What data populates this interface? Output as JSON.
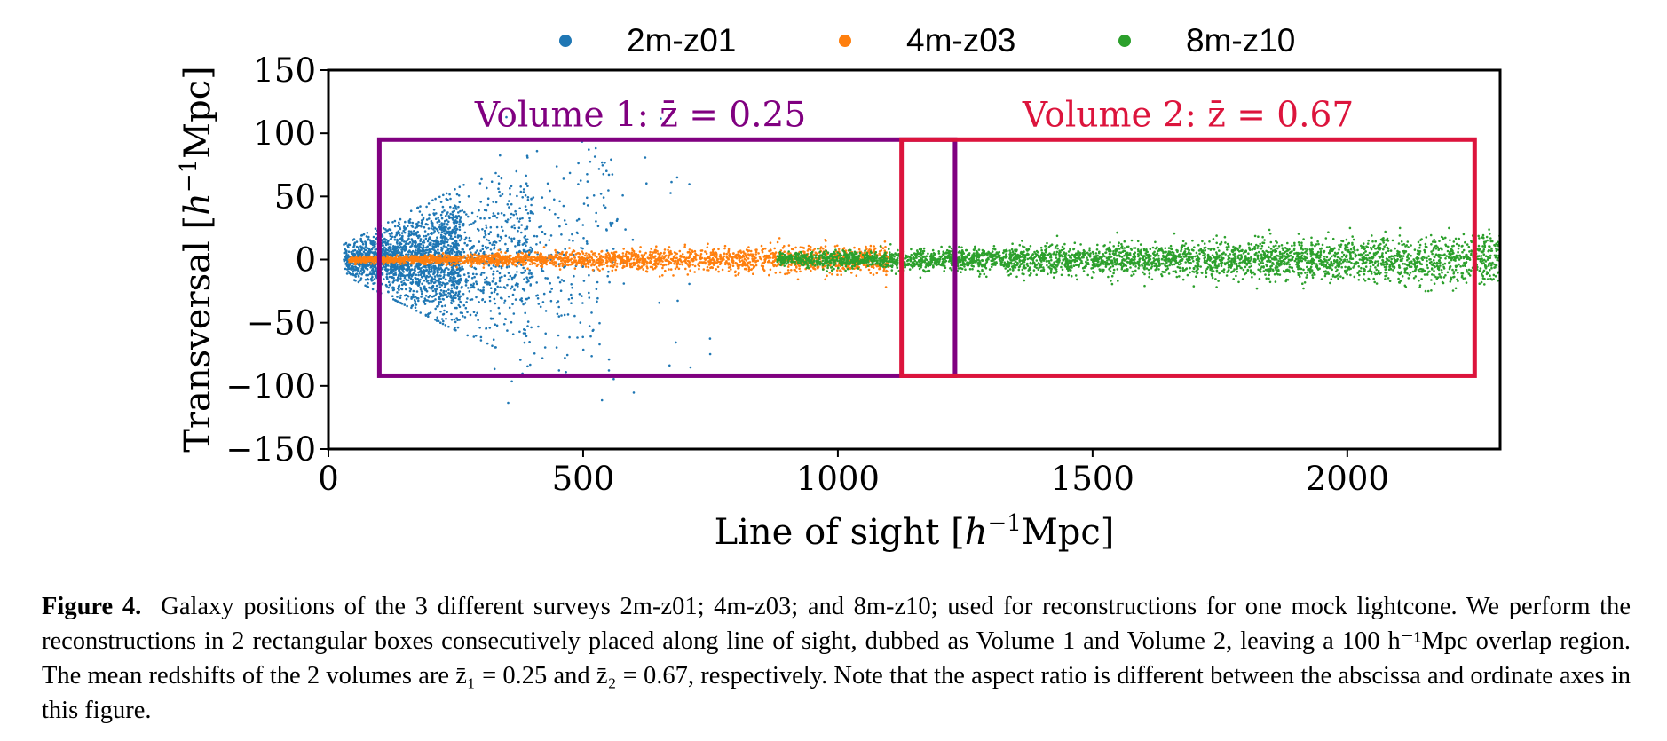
{
  "chart_data": {
    "type": "scatter",
    "xlabel": "Line of sight [h⁻¹Mpc]",
    "ylabel": "Transversal [h⁻¹Mpc]",
    "xlim": [
      0,
      2300
    ],
    "ylim": [
      -150,
      150
    ],
    "x_ticks": [
      0,
      500,
      1000,
      1500,
      2000
    ],
    "y_ticks": [
      150,
      100,
      50,
      0,
      -50,
      -100,
      -150
    ],
    "x_tick_labels": [
      "0",
      "500",
      "1000",
      "1500",
      "2000"
    ],
    "y_tick_labels": [
      "150",
      "100",
      "50",
      "0",
      "−50",
      "−100",
      "−150"
    ],
    "grid": false,
    "legend_position": "top-center, outside",
    "series": [
      {
        "name": "2m-z01",
        "color": "#1f77b4",
        "los_range": [
          30,
          560
        ],
        "opening_half_width_at_250": 55,
        "density": "high near x≈100-300, fanning cone"
      },
      {
        "name": "4m-z03",
        "color": "#ff7f0e",
        "los_range": [
          40,
          1100
        ],
        "transversal_half_width": [
          1,
          12
        ],
        "density": "narrow band"
      },
      {
        "name": "8m-z10",
        "color": "#2ca02c",
        "los_range": [
          900,
          2300
        ],
        "transversal_half_width": [
          8,
          25
        ],
        "density": "band widening with distance"
      }
    ],
    "annotations": [
      {
        "label": "Volume 1: z̄ = 0.25",
        "color": "#800080",
        "box_x": [
          100,
          1230
        ],
        "box_y": [
          -92,
          95
        ]
      },
      {
        "label": "Volume 2: z̄ = 0.67",
        "color": "#dc143c",
        "box_x": [
          1125,
          2250
        ],
        "box_y": [
          -92,
          95
        ]
      }
    ]
  },
  "caption": {
    "figure_number": "Figure 4.",
    "text": "Galaxy positions of the 3 different surveys 2m-z01; 4m-z03; and 8m-z10; used for reconstructions for one mock lightcone. We perform the reconstructions in 2 rectangular boxes consecutively placed along line of sight, dubbed as Volume 1 and Volume 2, leaving a 100 h⁻¹Mpc overlap region. The mean redshifts of the 2 volumes are z̄₁ = 0.25 and z̄₂ = 0.67, respectively. Note that the aspect ratio is different between the abscissa and ordinate axes in this figure."
  }
}
